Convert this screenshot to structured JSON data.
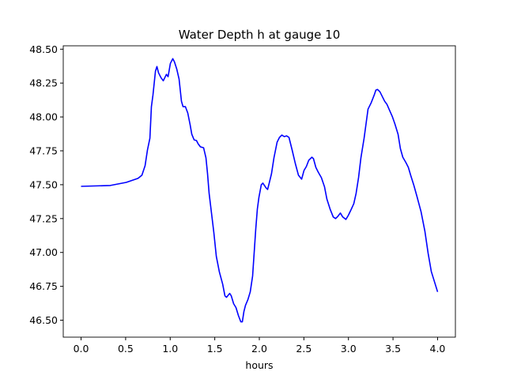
{
  "chart_data": {
    "type": "line",
    "title": "Water Depth h at gauge 10",
    "xlabel": "hours",
    "ylabel": "",
    "xlim": [
      -0.2,
      4.2
    ],
    "ylim": [
      46.375,
      48.525
    ],
    "xticks": [
      0.0,
      0.5,
      1.0,
      1.5,
      2.0,
      2.5,
      3.0,
      3.5,
      4.0
    ],
    "xtick_labels": [
      "0.0",
      "0.5",
      "1.0",
      "1.5",
      "2.0",
      "2.5",
      "3.0",
      "3.5",
      "4.0"
    ],
    "yticks": [
      46.5,
      46.75,
      47.0,
      47.25,
      47.5,
      47.75,
      48.0,
      48.25,
      48.5
    ],
    "ytick_labels": [
      "46.50",
      "46.75",
      "47.00",
      "47.25",
      "47.50",
      "47.75",
      "48.00",
      "48.25",
      "48.50"
    ],
    "grid": false,
    "series": [
      {
        "name": "h",
        "color": "#0000ff",
        "x": [
          0,
          0.328,
          0.506,
          0.639,
          0.683,
          0.718,
          0.745,
          0.772,
          0.789,
          0.807,
          0.834,
          0.851,
          0.869,
          0.896,
          0.922,
          0.958,
          0.976,
          1.002,
          1.029,
          1.047,
          1.073,
          1.1,
          1.126,
          1.144,
          1.171,
          1.197,
          1.224,
          1.242,
          1.268,
          1.295,
          1.313,
          1.339,
          1.375,
          1.401,
          1.419,
          1.437,
          1.463,
          1.49,
          1.517,
          1.552,
          1.588,
          1.614,
          1.632,
          1.667,
          1.685,
          1.712,
          1.738,
          1.765,
          1.792,
          1.809,
          1.827,
          1.845,
          1.871,
          1.898,
          1.925,
          1.942,
          1.96,
          1.978,
          1.996,
          2.022,
          2.04,
          2.058,
          2.075,
          2.093,
          2.111,
          2.137,
          2.164,
          2.2,
          2.226,
          2.253,
          2.279,
          2.306,
          2.333,
          2.368,
          2.404,
          2.439,
          2.475,
          2.501,
          2.528,
          2.554,
          2.59,
          2.608,
          2.634,
          2.661,
          2.696,
          2.732,
          2.758,
          2.794,
          2.829,
          2.856,
          2.882,
          2.909,
          2.936,
          2.971,
          2.998,
          3.024,
          3.06,
          3.086,
          3.113,
          3.14,
          3.175,
          3.22,
          3.255,
          3.29,
          3.308,
          3.326,
          3.353,
          3.379,
          3.406,
          3.432,
          3.459,
          3.494,
          3.521,
          3.557,
          3.583,
          3.61,
          3.645,
          3.672,
          3.698,
          3.734,
          3.769,
          3.814,
          3.858,
          3.894,
          3.929,
          4.0
        ],
        "y": [
          47.488,
          47.494,
          47.517,
          47.547,
          47.57,
          47.64,
          47.756,
          47.843,
          48.076,
          48.163,
          48.337,
          48.372,
          48.326,
          48.291,
          48.267,
          48.314,
          48.297,
          48.395,
          48.43,
          48.407,
          48.355,
          48.279,
          48.116,
          48.076,
          48.076,
          48.029,
          47.942,
          47.872,
          47.831,
          47.826,
          47.802,
          47.779,
          47.773,
          47.698,
          47.581,
          47.436,
          47.291,
          47.145,
          46.971,
          46.855,
          46.767,
          46.68,
          46.669,
          46.698,
          46.68,
          46.622,
          46.593,
          46.535,
          46.488,
          46.488,
          46.564,
          46.61,
          46.651,
          46.709,
          46.826,
          47.0,
          47.174,
          47.32,
          47.407,
          47.5,
          47.512,
          47.494,
          47.477,
          47.465,
          47.512,
          47.581,
          47.698,
          47.814,
          47.849,
          47.866,
          47.855,
          47.86,
          47.849,
          47.756,
          47.657,
          47.57,
          47.541,
          47.605,
          47.634,
          47.68,
          47.703,
          47.692,
          47.628,
          47.593,
          47.552,
          47.483,
          47.395,
          47.32,
          47.262,
          47.25,
          47.267,
          47.291,
          47.262,
          47.244,
          47.273,
          47.308,
          47.36,
          47.436,
          47.552,
          47.698,
          47.843,
          48.058,
          48.105,
          48.163,
          48.198,
          48.203,
          48.186,
          48.151,
          48.116,
          48.093,
          48.052,
          48.0,
          47.948,
          47.872,
          47.767,
          47.703,
          47.663,
          47.628,
          47.57,
          47.494,
          47.413,
          47.302,
          47.157,
          46.994,
          46.86,
          46.709
        ]
      }
    ]
  }
}
